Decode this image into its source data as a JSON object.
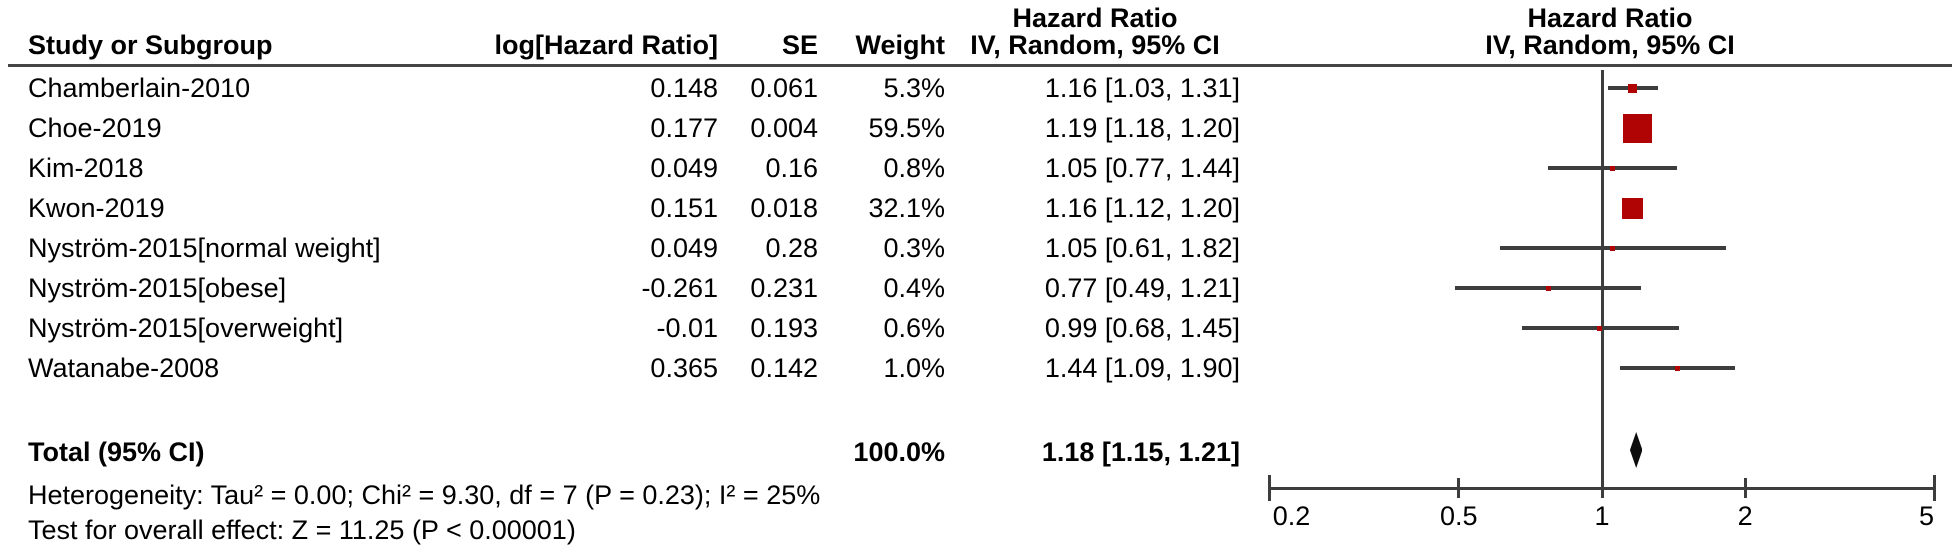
{
  "headers": {
    "hr_title_text_col": "Hazard Ratio",
    "hr_title_plot_col": "Hazard Ratio",
    "study": "Study or Subgroup",
    "log_hr": "log[Hazard Ratio]",
    "se": "SE",
    "weight": "Weight",
    "ci_text_col": "IV, Random, 95% CI",
    "ci_plot_col": "IV, Random, 95% CI"
  },
  "chart_data": {
    "type": "forest",
    "effect_measure": "Hazard Ratio",
    "model": "IV, Random, 95% CI",
    "x_scale": "log",
    "x_range": [
      0.2,
      5
    ],
    "x_ticks": [
      0.2,
      0.5,
      1,
      2,
      5
    ],
    "x_tick_labels": [
      "0.2",
      "0.5",
      "1",
      "2",
      "5"
    ],
    "null_line_value": 1,
    "marker_color": "#b00404",
    "diamond_color": "#0d0d0d",
    "line_color": "#3d3d3d",
    "studies": [
      {
        "name": "Chamberlain-2010",
        "log_hr": "0.148",
        "se": "0.061",
        "weight": "5.3%",
        "weight_pct": 5.3,
        "ci_text": "1.16 [1.03, 1.31]",
        "hr": 1.16,
        "ci_low": 1.03,
        "ci_high": 1.31
      },
      {
        "name": "Choe-2019",
        "log_hr": "0.177",
        "se": "0.004",
        "weight": "59.5%",
        "weight_pct": 59.5,
        "ci_text": "1.19 [1.18, 1.20]",
        "hr": 1.19,
        "ci_low": 1.18,
        "ci_high": 1.2
      },
      {
        "name": "Kim-2018",
        "log_hr": "0.049",
        "se": "0.16",
        "weight": "0.8%",
        "weight_pct": 0.8,
        "ci_text": "1.05 [0.77, 1.44]",
        "hr": 1.05,
        "ci_low": 0.77,
        "ci_high": 1.44
      },
      {
        "name": "Kwon-2019",
        "log_hr": "0.151",
        "se": "0.018",
        "weight": "32.1%",
        "weight_pct": 32.1,
        "ci_text": "1.16 [1.12, 1.20]",
        "hr": 1.16,
        "ci_low": 1.12,
        "ci_high": 1.2
      },
      {
        "name": "Nyström-2015[normal weight]",
        "log_hr": "0.049",
        "se": "0.28",
        "weight": "0.3%",
        "weight_pct": 0.3,
        "ci_text": "1.05 [0.61, 1.82]",
        "hr": 1.05,
        "ci_low": 0.61,
        "ci_high": 1.82
      },
      {
        "name": "Nyström-2015[obese]",
        "log_hr": "-0.261",
        "se": "0.231",
        "weight": "0.4%",
        "weight_pct": 0.4,
        "ci_text": "0.77 [0.49, 1.21]",
        "hr": 0.77,
        "ci_low": 0.49,
        "ci_high": 1.21
      },
      {
        "name": "Nyström-2015[overweight]",
        "log_hr": "-0.01",
        "se": "0.193",
        "weight": "0.6%",
        "weight_pct": 0.6,
        "ci_text": "0.99 [0.68, 1.45]",
        "hr": 0.99,
        "ci_low": 0.68,
        "ci_high": 1.45
      },
      {
        "name": "Watanabe-2008",
        "log_hr": "0.365",
        "se": "0.142",
        "weight": "1.0%",
        "weight_pct": 1.0,
        "ci_text": "1.44 [1.09, 1.90]",
        "hr": 1.44,
        "ci_low": 1.09,
        "ci_high": 1.9
      }
    ],
    "total": {
      "label": "Total (95% CI)",
      "weight": "100.0%",
      "weight_pct": 100.0,
      "ci_text": "1.18 [1.15, 1.21]",
      "hr": 1.18,
      "ci_low": 1.15,
      "ci_high": 1.21
    },
    "heterogeneity": "Heterogeneity: Tau² = 0.00; Chi² = 9.30, df = 7 (P = 0.23); I² = 25%",
    "overall_effect": "Test for overall effect: Z = 11.25 (P < 0.00001)"
  }
}
